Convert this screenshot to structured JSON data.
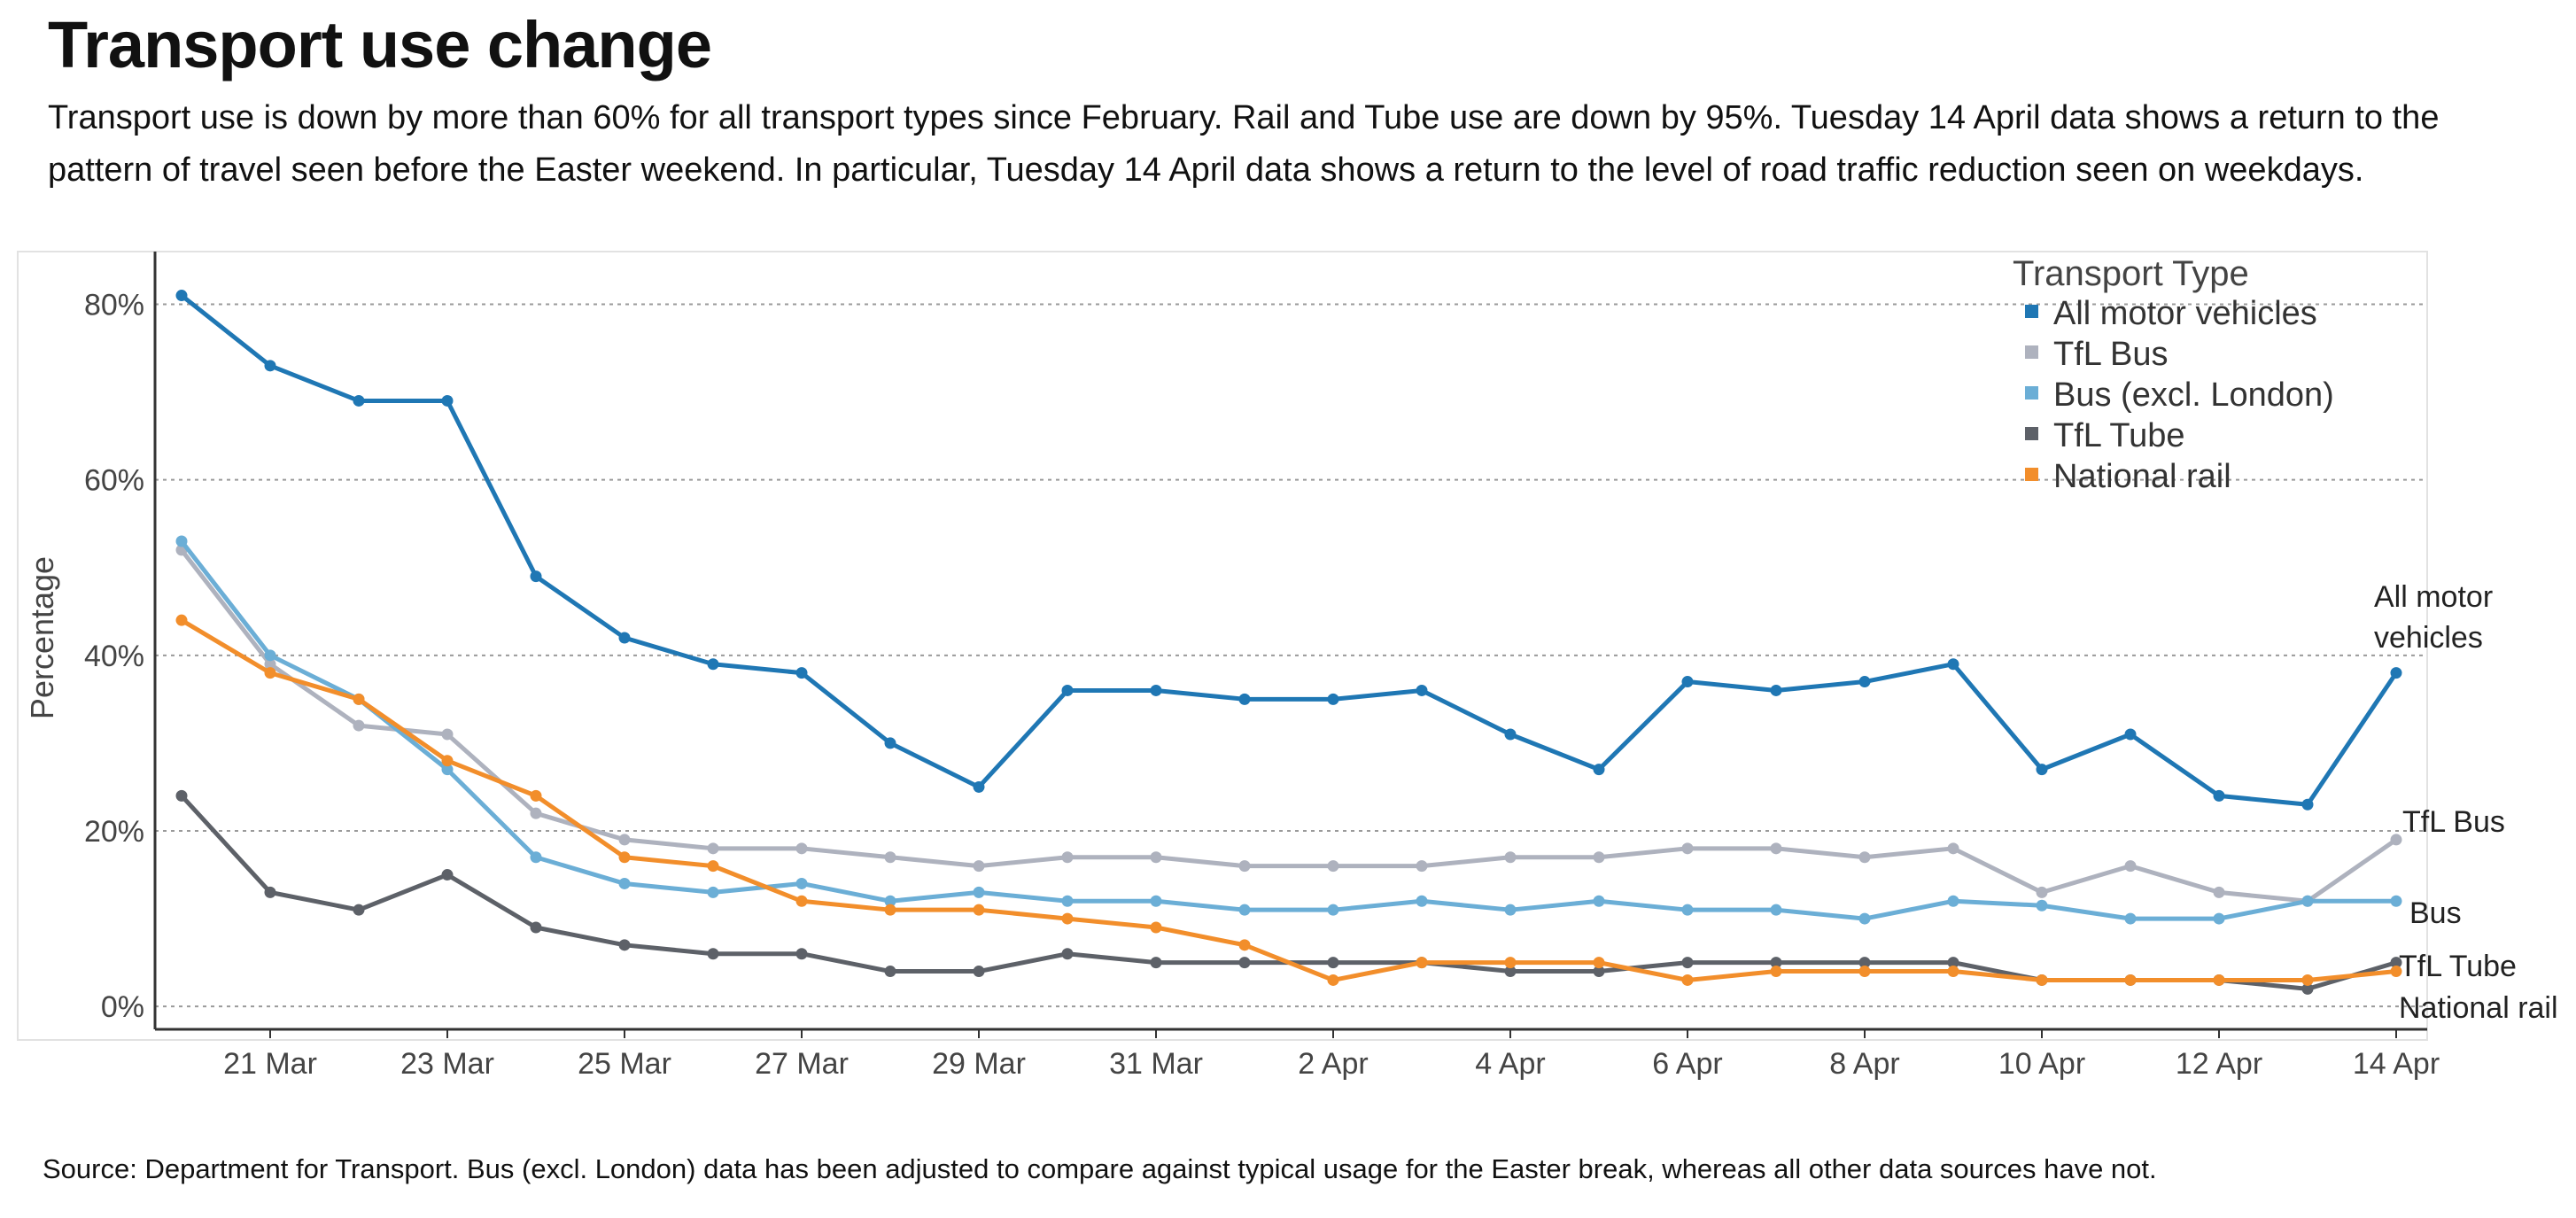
{
  "title": "Transport use change",
  "subtitle": "Transport use is down by more than 60% for all transport types since February. Rail and Tube use are down by 95%. Tuesday 14 April data shows a return to the pattern of travel seen before the Easter weekend. In particular, Tuesday 14 April data shows a return to the level of road traffic reduction seen on weekdays.",
  "source": "Source: Department for Transport. Bus (excl. London) data has been adjusted to compare against typical usage for the Easter break, whereas all other data sources have not.",
  "chart_data": {
    "type": "line",
    "ylabel": "Percentage",
    "xlabel": "",
    "ylim": [
      -2,
      86
    ],
    "yticks": [
      0,
      20,
      40,
      60,
      80
    ],
    "ytick_labels": [
      "0%",
      "20%",
      "40%",
      "60%",
      "80%"
    ],
    "grid": "horizontal dotted",
    "legend": {
      "title": "Transport Type",
      "position": "top-right"
    },
    "x": [
      "20 Mar",
      "21 Mar",
      "22 Mar",
      "23 Mar",
      "24 Mar",
      "25 Mar",
      "26 Mar",
      "27 Mar",
      "28 Mar",
      "29 Mar",
      "30 Mar",
      "31 Mar",
      "1 Apr",
      "2 Apr",
      "3 Apr",
      "4 Apr",
      "5 Apr",
      "6 Apr",
      "7 Apr",
      "8 Apr",
      "9 Apr",
      "10 Apr",
      "11 Apr",
      "12 Apr",
      "13 Apr",
      "14 Apr"
    ],
    "xtick_labels": [
      "21 Mar",
      "23 Mar",
      "25 Mar",
      "27 Mar",
      "29 Mar",
      "31 Mar",
      "2 Apr",
      "4 Apr",
      "6 Apr",
      "8 Apr",
      "10 Apr",
      "12 Apr",
      "14 Apr"
    ],
    "series": [
      {
        "name": "All motor vehicles",
        "color": "#1f77b4",
        "end_label": [
          "All motor",
          "vehicles"
        ],
        "values": [
          81,
          73,
          69,
          69,
          49,
          42,
          39,
          38,
          30,
          25,
          36,
          36,
          35,
          35,
          36,
          31,
          27,
          37,
          36,
          37,
          39,
          27,
          31,
          24,
          23,
          38
        ]
      },
      {
        "name": "TfL Bus",
        "color": "#aeb2be",
        "end_label": [
          "TfL Bus"
        ],
        "values": [
          52,
          39,
          32,
          31,
          22,
          19,
          18,
          18,
          17,
          16,
          17,
          17,
          16,
          16,
          16,
          17,
          17,
          18,
          18,
          17,
          18,
          13,
          16,
          13,
          12,
          19
        ]
      },
      {
        "name": "Bus (excl. London)",
        "color": "#6baed6",
        "end_label": [
          "Bus"
        ],
        "values": [
          53,
          40,
          35,
          27,
          17,
          14,
          13,
          14,
          12,
          13,
          12,
          12,
          11,
          11,
          12,
          11,
          12,
          11,
          11,
          10,
          12,
          11.5,
          10,
          10,
          12,
          12
        ]
      },
      {
        "name": "TfL Tube",
        "color": "#5d6168",
        "end_label": [
          "TfL Tube"
        ],
        "values": [
          24,
          13,
          11,
          15,
          9,
          7,
          6,
          6,
          4,
          4,
          6,
          5,
          5,
          5,
          5,
          4,
          4,
          5,
          5,
          5,
          5,
          3,
          3,
          3,
          2,
          5
        ]
      },
      {
        "name": "National rail",
        "color": "#f28e2b",
        "end_label": [
          "National rail"
        ],
        "values": [
          44,
          38,
          35,
          28,
          24,
          17,
          16,
          12,
          11,
          11,
          10,
          9,
          7,
          3,
          5,
          5,
          5,
          3,
          4,
          4,
          4,
          3,
          3,
          3,
          3,
          4
        ]
      }
    ]
  }
}
